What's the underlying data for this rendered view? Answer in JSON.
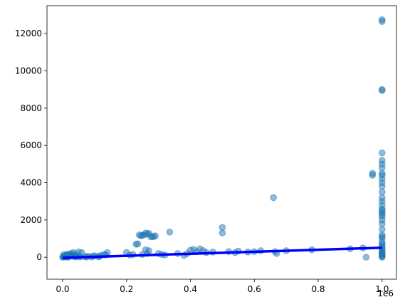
{
  "chart_data": {
    "type": "scatter",
    "xlim": [
      -0.049,
      1.045
    ],
    "ylim": [
      -1180,
      13500
    ],
    "xticks": [
      {
        "value": 0,
        "label": "0.0"
      },
      0.2,
      0.4,
      0.6,
      0.8,
      {
        "value": 1,
        "label": "1.0"
      }
    ],
    "yticks": [
      0,
      2000,
      4000,
      6000,
      8000,
      10000,
      12000
    ],
    "x_offset_label": "1e6",
    "series": [
      {
        "kind": "scatter",
        "color": "#1f77b4",
        "x": [
          0,
          0.002,
          0.004,
          0.006,
          0.008,
          0.01,
          0.012,
          0.015,
          0.018,
          0.02,
          0.022,
          0.025,
          0.028,
          0.03,
          0.033,
          0.035,
          0.038,
          0.04,
          0.045,
          0.05,
          0.055,
          0.06,
          0.003,
          0.007,
          0.013,
          0.017,
          0.024,
          0.032,
          0.042,
          0.052,
          0.07,
          0.08,
          0.09,
          0.1,
          0.11,
          0.12,
          0.13,
          0.14,
          0.075,
          0.095,
          0.115,
          0.135,
          0.2,
          0.21,
          0.22,
          0.23,
          0.235,
          0.245,
          0.25,
          0.255,
          0.26,
          0.265,
          0.27,
          0.275,
          0.28,
          0.285,
          0.29,
          0.25,
          0.26,
          0.27,
          0.3,
          0.24,
          0.265,
          0.31,
          0.32,
          0.335,
          0.36,
          0.38,
          0.39,
          0.4,
          0.41,
          0.42,
          0.43,
          0.44,
          0.45,
          0.47,
          0.5,
          0.5,
          0.52,
          0.54,
          0.55,
          0.58,
          0.6,
          0.62,
          0.66,
          0.665,
          0.67,
          0.7,
          0.78,
          0.9,
          0.94,
          0.95,
          0.97,
          0.97,
          1,
          1,
          1,
          1,
          1,
          1,
          1,
          1,
          1,
          1,
          1,
          1,
          1,
          1,
          1,
          1,
          1,
          1,
          1,
          1,
          1,
          1,
          1,
          1,
          1,
          1,
          1,
          1,
          1,
          1,
          1,
          1,
          1,
          1,
          1,
          1,
          1,
          1,
          1,
          1
        ],
        "values": [
          0,
          20,
          50,
          10,
          80,
          30,
          100,
          5,
          60,
          150,
          40,
          200,
          90,
          120,
          250,
          70,
          30,
          180,
          60,
          280,
          20,
          250,
          130,
          40,
          160,
          10,
          110,
          60,
          20,
          40,
          30,
          60,
          20,
          80,
          40,
          100,
          150,
          250,
          10,
          50,
          30,
          120,
          250,
          120,
          150,
          700,
          720,
          1150,
          1180,
          1200,
          1300,
          1250,
          1280,
          1100,
          1120,
          1100,
          1150,
          150,
          400,
          350,
          200,
          1200,
          200,
          150,
          120,
          1350,
          200,
          100,
          200,
          380,
          420,
          300,
          450,
          350,
          250,
          280,
          1600,
          1300,
          300,
          250,
          330,
          280,
          300,
          350,
          3200,
          300,
          200,
          350,
          400,
          450,
          500,
          0,
          4400,
          4500,
          0,
          50,
          100,
          200,
          300,
          400,
          500,
          600,
          800,
          1000,
          1200,
          1500,
          1800,
          2000,
          2200,
          2400,
          2500,
          2600,
          2800,
          3000,
          3200,
          3500,
          3800,
          4000,
          4200,
          4400,
          4500,
          4800,
          5000,
          5200,
          5600,
          8950,
          9000,
          12650,
          12750,
          250,
          150,
          700,
          1100,
          2300
        ]
      },
      {
        "kind": "line",
        "color": "#0000ff",
        "x": [
          0,
          1
        ],
        "values": [
          -30,
          510
        ]
      }
    ]
  }
}
